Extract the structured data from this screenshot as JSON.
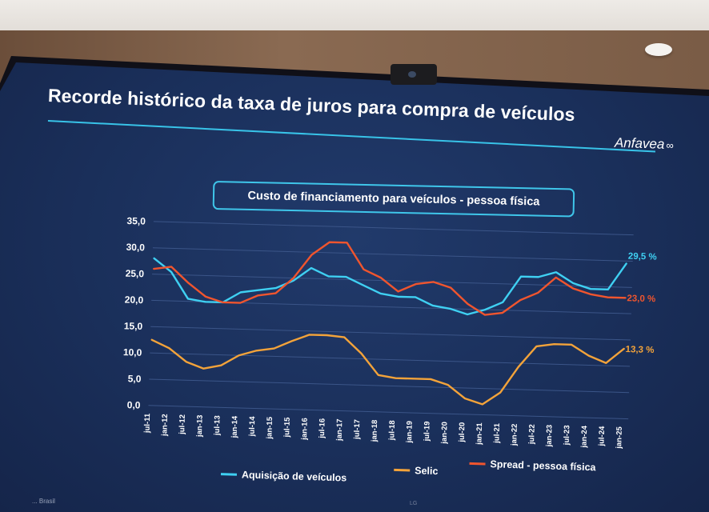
{
  "slide": {
    "title": "Recorde histórico da taxa de juros para compra de veículos",
    "logo_text": "Anfavea",
    "logo_mark": "∞",
    "source_text": "... Brasil",
    "tv_logo": "LG"
  },
  "colors": {
    "aquisicao": "#3fd0f2",
    "selic": "#f3a33a",
    "spread": "#f0552e",
    "title_underline": "#38c3e8",
    "screen_bg": "#1a2f5a"
  },
  "chart_data": {
    "type": "line",
    "title": "Custo de financiamento para veículos - pessoa física",
    "xlabel": "",
    "ylabel": "",
    "ylim": [
      0,
      35
    ],
    "yticks": [
      "0,0",
      "5,0",
      "10,0",
      "15,0",
      "20,0",
      "25,0",
      "30,0",
      "35,0"
    ],
    "grid": true,
    "legend_position": "bottom",
    "categories": [
      "jul-11",
      "jan-12",
      "jul-12",
      "jan-13",
      "jul-13",
      "jan-14",
      "jul-14",
      "jan-15",
      "jul-15",
      "jan-16",
      "jul-16",
      "jan-17",
      "jul-17",
      "jan-18",
      "jul-18",
      "jan-19",
      "jul-19",
      "jan-20",
      "jul-20",
      "jan-21",
      "jul-21",
      "jan-22",
      "jul-22",
      "jan-23",
      "jul-23",
      "jan-24",
      "jul-24",
      "jan-25"
    ],
    "series": [
      {
        "name": "Aquisição de veículos",
        "color": "#3fd0f2",
        "end_label": "29,5 %",
        "values": [
          28.0,
          25.5,
          20.5,
          20.0,
          20.0,
          22.0,
          22.5,
          23.0,
          24.5,
          27.0,
          25.5,
          25.5,
          24.0,
          22.5,
          22.0,
          22.0,
          20.5,
          20.0,
          19.0,
          20.0,
          21.5,
          26.5,
          26.5,
          27.5,
          25.5,
          24.5,
          24.5,
          29.5
        ]
      },
      {
        "name": "Selic",
        "color": "#f3a33a",
        "end_label": "13,3 %",
        "values": [
          12.5,
          11.0,
          8.5,
          7.3,
          8.0,
          10.0,
          11.0,
          11.5,
          13.0,
          14.3,
          14.3,
          14.0,
          11.0,
          7.0,
          6.5,
          6.5,
          6.5,
          5.5,
          3.0,
          2.0,
          4.3,
          9.3,
          13.3,
          13.8,
          13.8,
          11.8,
          10.5,
          13.3
        ]
      },
      {
        "name": "Spread - pessoa física",
        "color": "#f0552e",
        "end_label": "23,0 %",
        "values": [
          26.0,
          26.5,
          23.5,
          21.0,
          20.0,
          20.0,
          21.5,
          22.0,
          25.0,
          29.5,
          32.0,
          32.0,
          27.0,
          25.5,
          23.0,
          24.5,
          25.0,
          24.0,
          21.0,
          19.0,
          19.5,
          22.0,
          23.5,
          26.5,
          24.5,
          23.5,
          23.0,
          23.0
        ]
      }
    ]
  }
}
